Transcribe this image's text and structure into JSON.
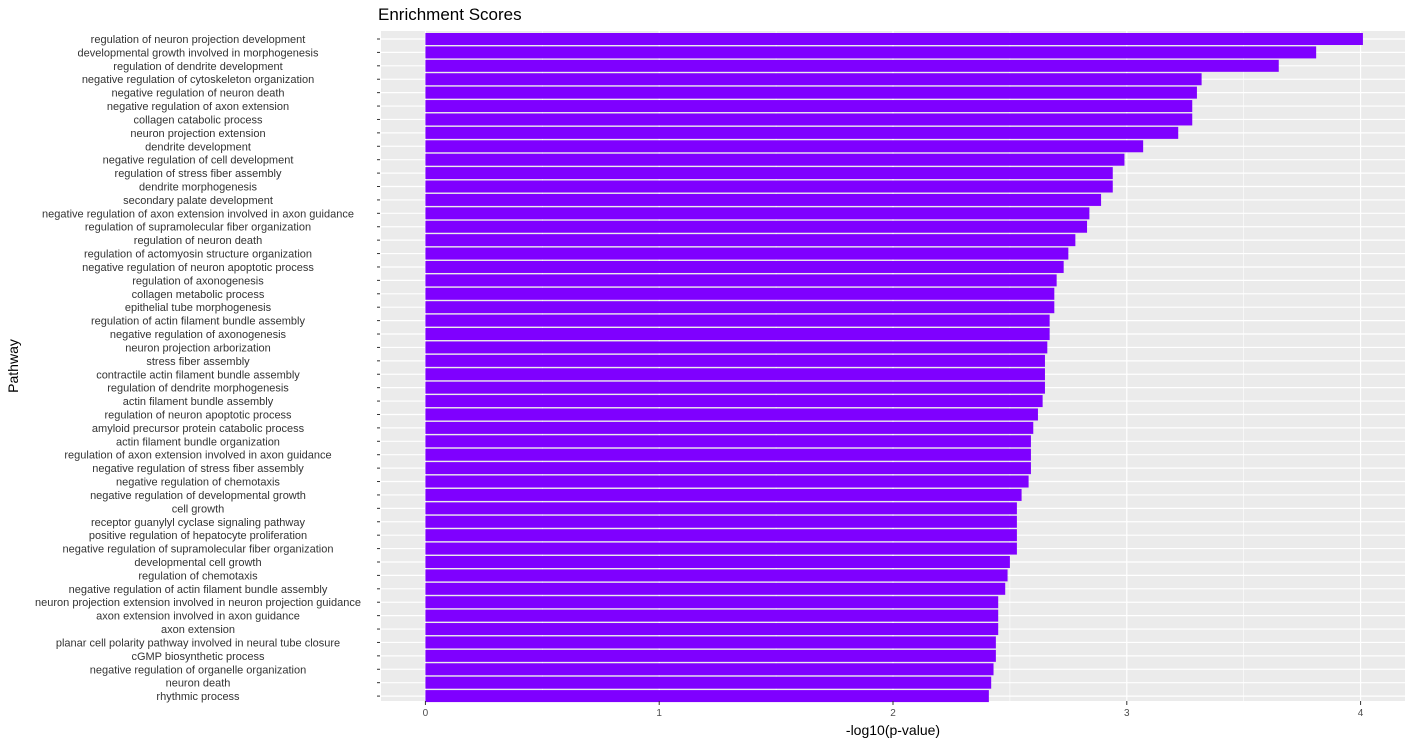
{
  "chart_data": {
    "type": "bar",
    "orientation": "horizontal",
    "title": "Enrichment Scores",
    "xlabel": "-log10(p-value)",
    "ylabel": "Pathway",
    "xlim": [
      -0.19,
      4.19
    ],
    "xticks": [
      0,
      1,
      2,
      3,
      4
    ],
    "grid": true,
    "legend": "none",
    "bar_color": "#7F00FF",
    "panel_color": "#EBEBEB",
    "categories": [
      "regulation of neuron projection development",
      "developmental growth involved in morphogenesis",
      "regulation of dendrite development",
      "negative regulation of cytoskeleton organization",
      "negative regulation of neuron death",
      "negative regulation of axon extension",
      "collagen catabolic process",
      "neuron projection extension",
      "dendrite development",
      "negative regulation of cell development",
      "regulation of stress fiber assembly",
      "dendrite morphogenesis",
      "secondary palate development",
      "negative regulation of axon extension involved in axon guidance",
      "regulation of supramolecular fiber organization",
      "regulation of neuron death",
      "regulation of actomyosin structure organization",
      "negative regulation of neuron apoptotic process",
      "regulation of axonogenesis",
      "collagen metabolic process",
      "epithelial tube morphogenesis",
      "regulation of actin filament bundle assembly",
      "negative regulation of axonogenesis",
      "neuron projection arborization",
      "stress fiber assembly",
      "contractile actin filament bundle assembly",
      "regulation of dendrite morphogenesis",
      "actin filament bundle assembly",
      "regulation of neuron apoptotic process",
      "amyloid precursor protein catabolic process",
      "actin filament bundle organization",
      "regulation of axon extension involved in axon guidance",
      "negative regulation of stress fiber assembly",
      "negative regulation of chemotaxis",
      "negative regulation of developmental growth",
      "cell growth",
      "receptor guanylyl cyclase signaling pathway",
      "positive regulation of hepatocyte proliferation",
      "negative regulation of supramolecular fiber organization",
      "developmental cell growth",
      "regulation of chemotaxis",
      "negative regulation of actin filament bundle assembly",
      "neuron projection extension involved in neuron projection guidance",
      "axon extension involved in axon guidance",
      "axon extension",
      "planar cell polarity pathway involved in neural tube closure",
      "cGMP biosynthetic process",
      "negative regulation of organelle organization",
      "neuron death",
      "rhythmic process"
    ],
    "values": [
      4.01,
      3.81,
      3.65,
      3.32,
      3.3,
      3.28,
      3.28,
      3.22,
      3.07,
      2.99,
      2.94,
      2.94,
      2.89,
      2.84,
      2.83,
      2.78,
      2.75,
      2.73,
      2.7,
      2.69,
      2.69,
      2.67,
      2.67,
      2.66,
      2.65,
      2.65,
      2.65,
      2.64,
      2.62,
      2.6,
      2.59,
      2.59,
      2.59,
      2.58,
      2.55,
      2.53,
      2.53,
      2.53,
      2.53,
      2.5,
      2.49,
      2.48,
      2.45,
      2.45,
      2.45,
      2.44,
      2.44,
      2.43,
      2.42,
      2.41
    ]
  }
}
